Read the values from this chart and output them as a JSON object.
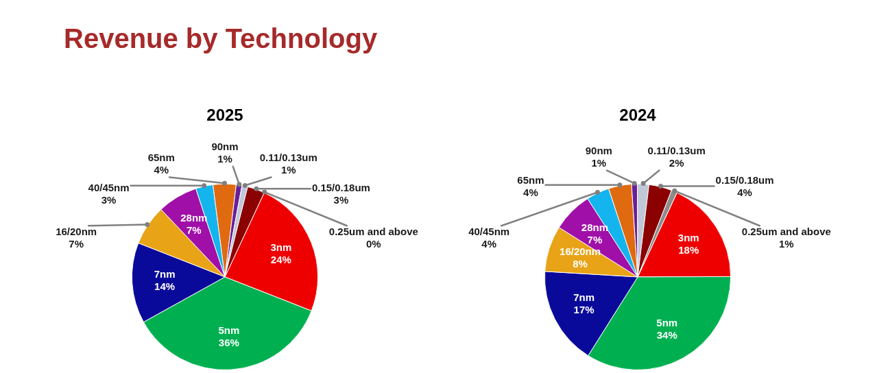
{
  "chart_data": [
    {
      "type": "pie",
      "title": "Revenue by Technology",
      "subtitle": "2025",
      "categories": [
        "3nm",
        "5nm",
        "7nm",
        "16/20nm",
        "28nm",
        "40/45nm",
        "65nm",
        "90nm",
        "0.11/0.13um",
        "0.15/0.18um",
        "0.25um and above"
      ],
      "values": [
        24,
        36,
        14,
        7,
        7,
        3,
        4,
        1,
        1,
        3,
        0
      ],
      "value_labels": [
        "24%",
        "36%",
        "14%",
        "7%",
        "7%",
        "3%",
        "4%",
        "1%",
        "1%",
        "3%",
        "0%"
      ],
      "colors": [
        "#ee0000",
        "#00b050",
        "#0a0a9a",
        "#e8a317",
        "#a010a8",
        "#14b4ee",
        "#e06a10",
        "#6a1f9a",
        "#c0c8d8",
        "#8b0000",
        "#8c8c8c"
      ]
    },
    {
      "type": "pie",
      "subtitle": "2024",
      "categories": [
        "3nm",
        "5nm",
        "7nm",
        "16/20nm",
        "28nm",
        "40/45nm",
        "65nm",
        "90nm",
        "0.11/0.13um",
        "0.15/0.18um",
        "0.25um and above"
      ],
      "values": [
        18,
        34,
        17,
        8,
        7,
        4,
        4,
        1,
        2,
        4,
        1
      ],
      "value_labels": [
        "18%",
        "34%",
        "17%",
        "8%",
        "7%",
        "4%",
        "4%",
        "1%",
        "2%",
        "4%",
        "1%"
      ],
      "colors": [
        "#ee0000",
        "#00b050",
        "#0a0a9a",
        "#e8a317",
        "#a010a8",
        "#14b4ee",
        "#e06a10",
        "#6a1f9a",
        "#c0c8d8",
        "#8b0000",
        "#8c8c8c"
      ]
    }
  ]
}
